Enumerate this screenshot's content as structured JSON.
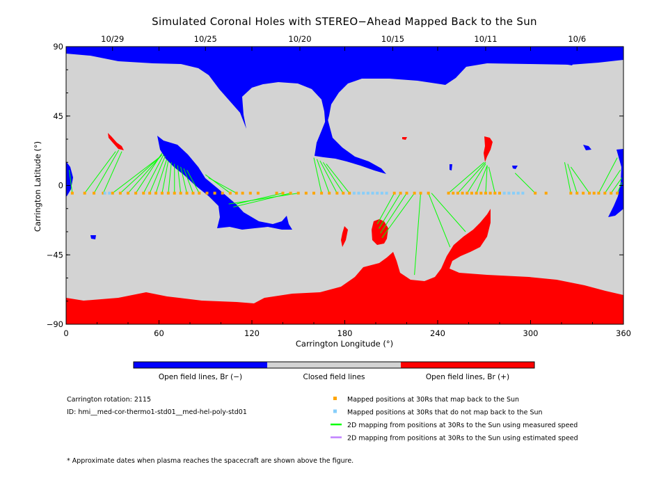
{
  "chart_data": {
    "type": "scatter",
    "title": "Simulated Coronal Holes with STEREO−Ahead Mapped Back to the Sun",
    "xlabel": "Carrington Longitude (°)",
    "ylabel": "Carrington Latitude (°)",
    "xlim": [
      0,
      360
    ],
    "ylim": [
      -90,
      90
    ],
    "x_ticks": [
      "0",
      "60",
      "120",
      "180",
      "240",
      "300",
      "360"
    ],
    "y_ticks": [
      "90",
      "45",
      "0",
      "−45",
      "−90"
    ],
    "top_dates": [
      {
        "label": "10/29",
        "lon": 30
      },
      {
        "label": "10/25",
        "lon": 90
      },
      {
        "label": "10/20",
        "lon": 151
      },
      {
        "label": "10/15",
        "lon": 211
      },
      {
        "label": "10/11",
        "lon": 271
      },
      {
        "label": "10/6",
        "lon": 330
      }
    ],
    "colors": {
      "open_negative": "#0000ff",
      "closed": "#d3d3d3",
      "open_positive": "#ff0000",
      "mapped_back": "#ffa500",
      "not_mapped": "#87cefa",
      "measured_speed": "#00ff00",
      "estimated_speed": "#c080ff"
    },
    "colorbar_labels": [
      "Open field lines, Br (−)",
      "Closed field lines",
      "Open field lines, Br (+)"
    ],
    "legend": [
      {
        "label": "Mapped positions at 30Rs that map back to the Sun",
        "kind": "square",
        "color": "#ffa500"
      },
      {
        "label": "Mapped positions at 30Rs that do not map back to the Sun",
        "kind": "square",
        "color": "#87cefa"
      },
      {
        "label": "2D mapping from positions at 30Rs to the Sun using measured speed",
        "kind": "line",
        "color": "#00ff00"
      },
      {
        "label": "2D mapping from positions at 30Rs to the Sun using estimated speed",
        "kind": "line",
        "color": "#c080ff"
      }
    ],
    "info": [
      "Carrington rotation: 2115",
      "ID: hmi__med-cor-thermo1-std01__med-hel-poly-std01"
    ],
    "footnote": "* Approximate dates when plasma reaches the spacecraft are shown above the figure.",
    "mapped_points_lat": -5,
    "mapped_back_lon": [
      4,
      12,
      18,
      24,
      30,
      35,
      40,
      45,
      50,
      54,
      58,
      62,
      66,
      70,
      74,
      78,
      82,
      86,
      91,
      96,
      101,
      106,
      110,
      114,
      119,
      124,
      136,
      140,
      145,
      150,
      155,
      160,
      165,
      170,
      175,
      179,
      183,
      212,
      216,
      220,
      225,
      229,
      234,
      247,
      250,
      253,
      256,
      259,
      262,
      265,
      268,
      271,
      274,
      277,
      280,
      303,
      310,
      326,
      330,
      334,
      338,
      341,
      344,
      348,
      352,
      356
    ],
    "not_mapped_lon": [
      25,
      28,
      186,
      189,
      192,
      195,
      198,
      201,
      204,
      207,
      283,
      286,
      289,
      292,
      295
    ],
    "mapping_lines": [
      {
        "from": [
          12,
          -5
        ],
        "to": [
          32,
          22
        ]
      },
      {
        "from": [
          18,
          -5
        ],
        "to": [
          34,
          23
        ]
      },
      {
        "from": [
          24,
          -5
        ],
        "to": [
          36,
          22
        ]
      },
      {
        "from": [
          30,
          -5
        ],
        "to": [
          60,
          18
        ]
      },
      {
        "from": [
          35,
          -5
        ],
        "to": [
          61,
          19
        ]
      },
      {
        "from": [
          40,
          -5
        ],
        "to": [
          62,
          20
        ]
      },
      {
        "from": [
          45,
          -5
        ],
        "to": [
          62,
          21
        ]
      },
      {
        "from": [
          50,
          -5
        ],
        "to": [
          63,
          20
        ]
      },
      {
        "from": [
          54,
          -5
        ],
        "to": [
          64,
          19
        ]
      },
      {
        "from": [
          58,
          -5
        ],
        "to": [
          65,
          17
        ]
      },
      {
        "from": [
          62,
          -5
        ],
        "to": [
          66,
          16
        ]
      },
      {
        "from": [
          66,
          -5
        ],
        "to": [
          68,
          15
        ]
      },
      {
        "from": [
          70,
          -5
        ],
        "to": [
          70,
          14
        ]
      },
      {
        "from": [
          74,
          -5
        ],
        "to": [
          72,
          13
        ]
      },
      {
        "from": [
          78,
          -5
        ],
        "to": [
          74,
          12
        ]
      },
      {
        "from": [
          82,
          -5
        ],
        "to": [
          76,
          11
        ]
      },
      {
        "from": [
          86,
          -5
        ],
        "to": [
          78,
          10
        ]
      },
      {
        "from": [
          106,
          -5
        ],
        "to": [
          90,
          7
        ]
      },
      {
        "from": [
          110,
          -5
        ],
        "to": [
          92,
          5
        ]
      },
      {
        "from": [
          110,
          -12
        ],
        "to": [
          140,
          -5
        ]
      },
      {
        "from": [
          108,
          -14
        ],
        "to": [
          145,
          -5
        ]
      },
      {
        "from": [
          105,
          -12
        ],
        "to": [
          150,
          -5
        ]
      },
      {
        "from": [
          4,
          -5
        ],
        "to": [
          2,
          10
        ]
      },
      {
        "from": [
          165,
          -5
        ],
        "to": [
          160,
          18
        ]
      },
      {
        "from": [
          170,
          -5
        ],
        "to": [
          162,
          17
        ]
      },
      {
        "from": [
          175,
          -5
        ],
        "to": [
          164,
          16
        ]
      },
      {
        "from": [
          179,
          -5
        ],
        "to": [
          166,
          15
        ]
      },
      {
        "from": [
          183,
          -5
        ],
        "to": [
          168,
          14
        ]
      },
      {
        "from": [
          212,
          -5
        ],
        "to": [
          201,
          -25
        ]
      },
      {
        "from": [
          216,
          -5
        ],
        "to": [
          202,
          -28
        ]
      },
      {
        "from": [
          220,
          -5
        ],
        "to": [
          203,
          -31
        ]
      },
      {
        "from": [
          225,
          -5
        ],
        "to": [
          204,
          -34
        ]
      },
      {
        "from": [
          229,
          -5
        ],
        "to": [
          225,
          -58
        ]
      },
      {
        "from": [
          234,
          -5
        ],
        "to": [
          248,
          -40
        ]
      },
      {
        "from": [
          236,
          -5
        ],
        "to": [
          258,
          -30
        ]
      },
      {
        "from": [
          247,
          -5
        ],
        "to": [
          270,
          15
        ]
      },
      {
        "from": [
          253,
          -5
        ],
        "to": [
          271,
          15
        ]
      },
      {
        "from": [
          259,
          -5
        ],
        "to": [
          271,
          14
        ]
      },
      {
        "from": [
          265,
          -5
        ],
        "to": [
          272,
          13
        ]
      },
      {
        "from": [
          271,
          -5
        ],
        "to": [
          272,
          13
        ]
      },
      {
        "from": [
          277,
          -5
        ],
        "to": [
          273,
          12
        ]
      },
      {
        "from": [
          303,
          -5
        ],
        "to": [
          290,
          8
        ]
      },
      {
        "from": [
          326,
          -5
        ],
        "to": [
          322,
          15
        ]
      },
      {
        "from": [
          330,
          -5
        ],
        "to": [
          324,
          14
        ]
      },
      {
        "from": [
          338,
          -5
        ],
        "to": [
          326,
          12
        ]
      },
      {
        "from": [
          344,
          -5
        ],
        "to": [
          356,
          18
        ]
      },
      {
        "from": [
          348,
          -5
        ],
        "to": [
          358,
          10
        ]
      },
      {
        "from": [
          352,
          -5
        ],
        "to": [
          359,
          5
        ]
      },
      {
        "from": [
          356,
          -5
        ],
        "to": [
          359,
          2
        ]
      }
    ]
  }
}
